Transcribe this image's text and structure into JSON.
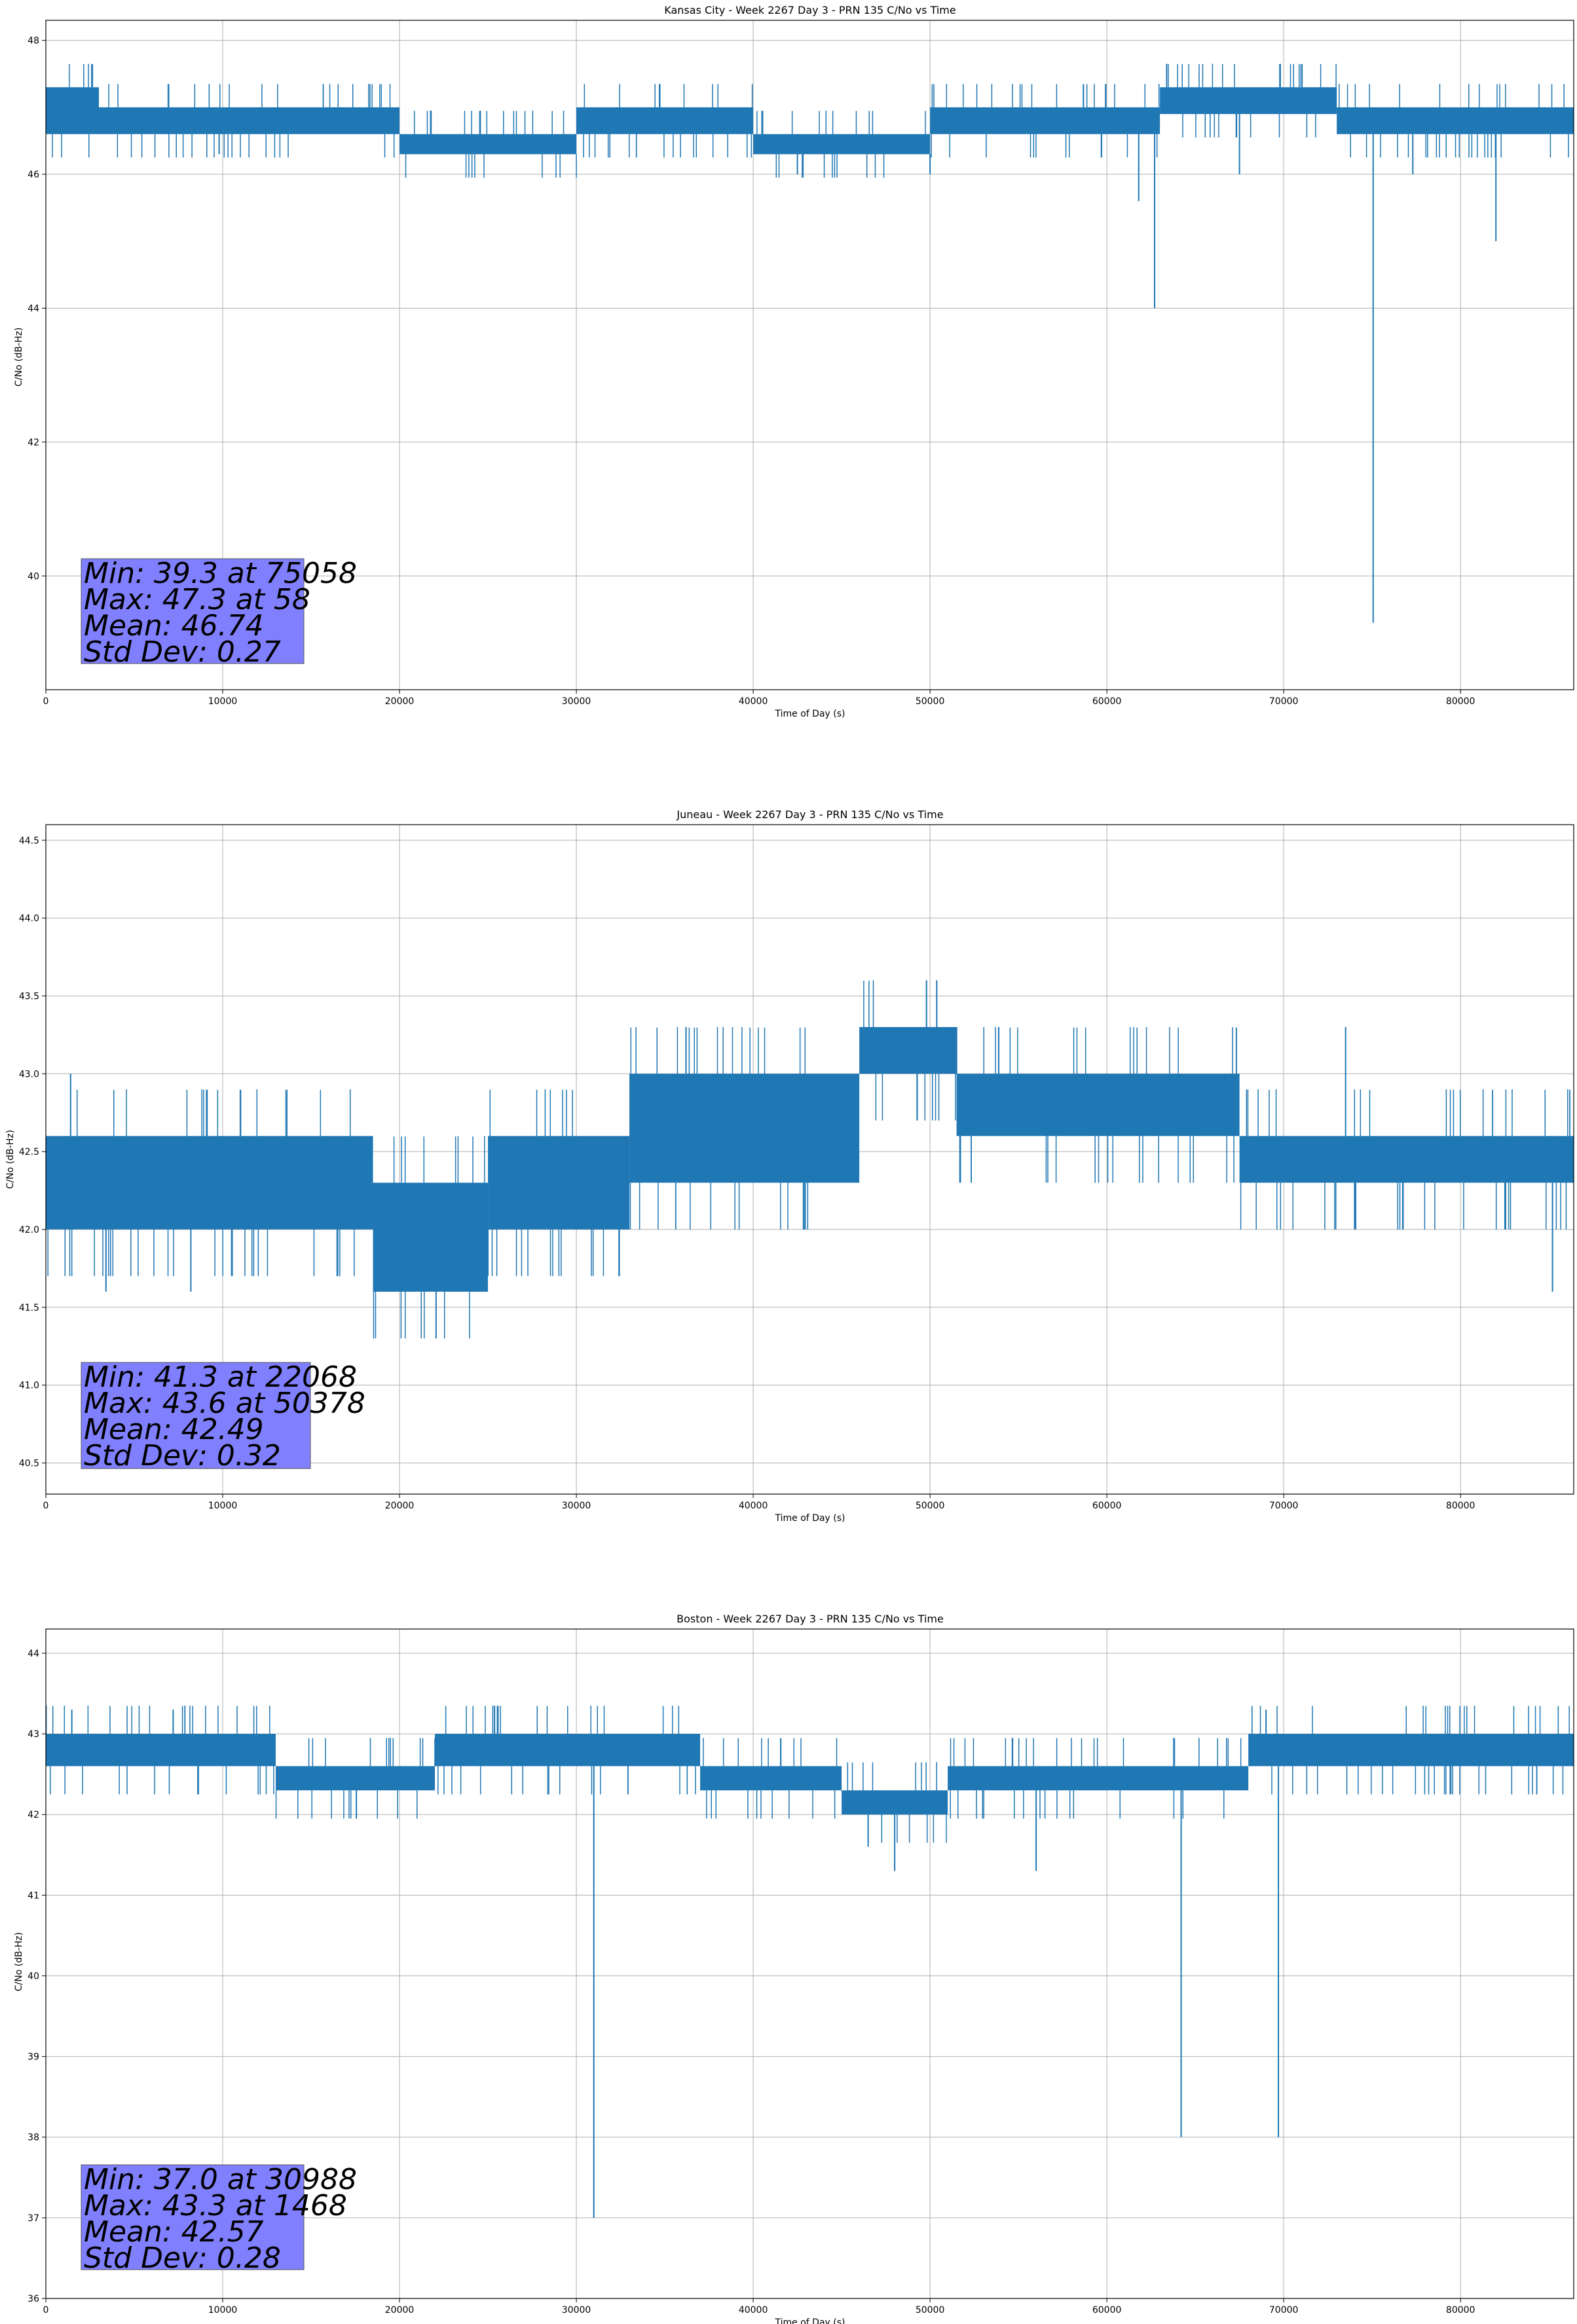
{
  "chart_data": [
    {
      "type": "line",
      "title": "Kansas City - Week 2267 Day 3 - PRN 135 C/No vs Time",
      "xlabel": "Time of Day (s)",
      "ylabel": "C/No (dB-Hz)",
      "xlim": [
        0,
        86400
      ],
      "ylim": [
        38.3,
        48.3
      ],
      "xticks": [
        0,
        10000,
        20000,
        30000,
        40000,
        50000,
        60000,
        70000,
        80000
      ],
      "yticks": [
        40,
        42,
        44,
        46,
        48
      ],
      "grid": true,
      "series_color": "#1f77b4",
      "stats_box_color": "#8080ff",
      "segments": [
        {
          "x0": 0,
          "x1": 3000,
          "low": 46.6,
          "high": 47.3
        },
        {
          "x0": 3000,
          "x1": 20000,
          "low": 46.6,
          "high": 47.0
        },
        {
          "x0": 20000,
          "x1": 30000,
          "low": 46.3,
          "high": 46.6
        },
        {
          "x0": 30000,
          "x1": 40000,
          "low": 46.6,
          "high": 47.0
        },
        {
          "x0": 40000,
          "x1": 50000,
          "low": 46.3,
          "high": 46.6
        },
        {
          "x0": 50000,
          "x1": 63000,
          "low": 46.6,
          "high": 47.0
        },
        {
          "x0": 63000,
          "x1": 73000,
          "low": 46.9,
          "high": 47.3
        },
        {
          "x0": 73000,
          "x1": 86400,
          "low": 46.6,
          "high": 47.0
        }
      ],
      "spikes": [
        {
          "x": 61800,
          "y": 45.6
        },
        {
          "x": 62700,
          "y": 44.0
        },
        {
          "x": 67500,
          "y": 46.0
        },
        {
          "x": 75058,
          "y": 39.3
        },
        {
          "x": 77300,
          "y": 46.0
        },
        {
          "x": 82000,
          "y": 45.0
        },
        {
          "x": 42500,
          "y": 46.0
        },
        {
          "x": 50000,
          "y": 46.0
        },
        {
          "x": 9800,
          "y": 46.3
        }
      ],
      "stats": {
        "min": "Min: 39.3 at 75058",
        "max": "Max: 47.3 at 58",
        "mean": "Mean: 46.74",
        "std": "Std Dev: 0.27"
      }
    },
    {
      "type": "line",
      "title": "Juneau - Week 2267 Day 3 - PRN 135 C/No vs Time",
      "xlabel": "Time of Day (s)",
      "ylabel": "C/No (dB-Hz)",
      "xlim": [
        0,
        86400
      ],
      "ylim": [
        40.3,
        44.6
      ],
      "xticks": [
        0,
        10000,
        20000,
        30000,
        40000,
        50000,
        60000,
        70000,
        80000
      ],
      "yticks": [
        40.5,
        41.0,
        41.5,
        42.0,
        42.5,
        43.0,
        43.5,
        44.0,
        44.5
      ],
      "grid": true,
      "series_color": "#1f77b4",
      "stats_box_color": "#8080ff",
      "segments": [
        {
          "x0": 0,
          "x1": 3000,
          "low": 42.0,
          "high": 42.6
        },
        {
          "x0": 3000,
          "x1": 18500,
          "low": 42.0,
          "high": 42.6
        },
        {
          "x0": 18500,
          "x1": 25000,
          "low": 41.6,
          "high": 42.3
        },
        {
          "x0": 25000,
          "x1": 33000,
          "low": 42.0,
          "high": 42.6
        },
        {
          "x0": 33000,
          "x1": 46000,
          "low": 42.3,
          "high": 43.0
        },
        {
          "x0": 46000,
          "x1": 51500,
          "low": 43.0,
          "high": 43.3
        },
        {
          "x0": 51500,
          "x1": 67500,
          "low": 42.6,
          "high": 43.0
        },
        {
          "x0": 67500,
          "x1": 86400,
          "low": 42.3,
          "high": 42.6
        }
      ],
      "spikes": [
        {
          "x": 22068,
          "y": 41.3
        },
        {
          "x": 50378,
          "y": 43.6
        },
        {
          "x": 49800,
          "y": 43.6
        },
        {
          "x": 3400,
          "y": 41.6
        },
        {
          "x": 8200,
          "y": 41.6
        },
        {
          "x": 85200,
          "y": 41.6
        },
        {
          "x": 1400,
          "y": 43.0
        },
        {
          "x": 36200,
          "y": 43.3
        },
        {
          "x": 73500,
          "y": 43.3
        }
      ],
      "stats": {
        "min": "Min: 41.3 at 22068",
        "max": "Max: 43.6 at 50378",
        "mean": "Mean: 42.49",
        "std": "Std Dev: 0.32"
      }
    },
    {
      "type": "line",
      "title": "Boston - Week 2267 Day 3 - PRN 135 C/No vs Time",
      "xlabel": "Time of Day (s)",
      "ylabel": "C/No (dB-Hz)",
      "xlim": [
        0,
        86400
      ],
      "ylim": [
        36.0,
        44.3
      ],
      "xticks": [
        0,
        10000,
        20000,
        30000,
        40000,
        50000,
        60000,
        70000,
        80000
      ],
      "yticks": [
        36,
        37,
        38,
        39,
        40,
        41,
        42,
        43,
        44
      ],
      "grid": true,
      "series_color": "#1f77b4",
      "stats_box_color": "#8080ff",
      "segments": [
        {
          "x0": 0,
          "x1": 13000,
          "low": 42.6,
          "high": 43.0
        },
        {
          "x0": 13000,
          "x1": 22000,
          "low": 42.3,
          "high": 42.6
        },
        {
          "x0": 22000,
          "x1": 37000,
          "low": 42.6,
          "high": 43.0
        },
        {
          "x0": 37000,
          "x1": 45000,
          "low": 42.3,
          "high": 42.6
        },
        {
          "x0": 45000,
          "x1": 51000,
          "low": 42.0,
          "high": 42.3
        },
        {
          "x0": 51000,
          "x1": 68000,
          "low": 42.3,
          "high": 42.6
        },
        {
          "x0": 68000,
          "x1": 86400,
          "low": 42.6,
          "high": 43.0
        }
      ],
      "spikes": [
        {
          "x": 30988,
          "y": 37.0
        },
        {
          "x": 64200,
          "y": 38.0
        },
        {
          "x": 69700,
          "y": 38.0
        },
        {
          "x": 48000,
          "y": 41.3
        },
        {
          "x": 56000,
          "y": 41.3
        },
        {
          "x": 46500,
          "y": 41.6
        },
        {
          "x": 1468,
          "y": 43.3
        },
        {
          "x": 7200,
          "y": 43.3
        },
        {
          "x": 69000,
          "y": 43.3
        }
      ],
      "stats": {
        "min": "Min: 37.0 at 30988",
        "max": "Max: 43.3 at 1468",
        "mean": "Mean: 42.57",
        "std": "Std Dev: 0.28"
      }
    }
  ]
}
